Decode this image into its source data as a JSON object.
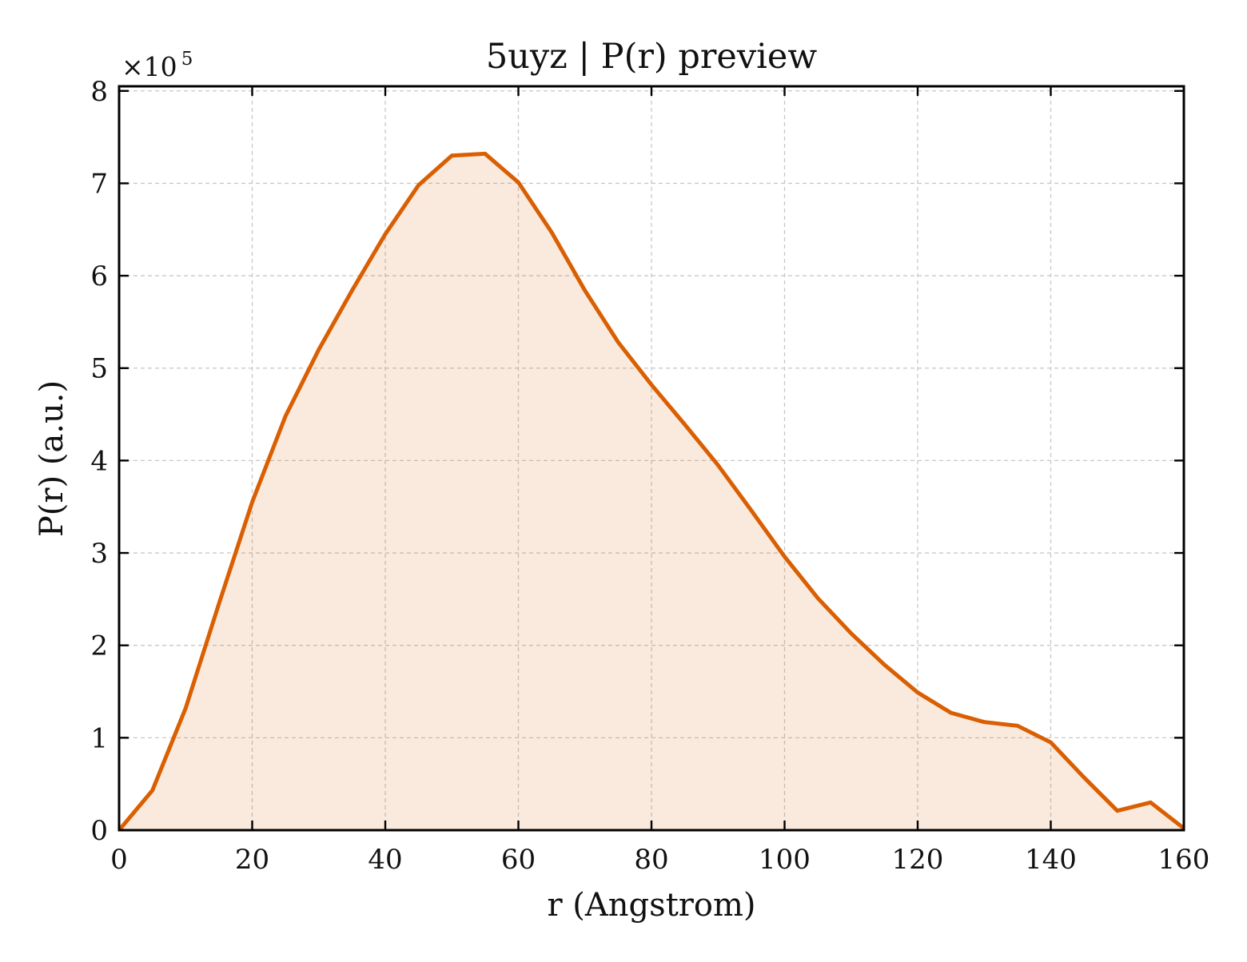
{
  "chart_data": {
    "type": "area",
    "title": "5uyz | P(r) preview",
    "xlabel": "r (Angstrom)",
    "ylabel": "P(r) (a.u.)",
    "y_multiplier": {
      "base": "×10",
      "exponent": "5"
    },
    "xlim": [
      0,
      160
    ],
    "ylim": [
      0,
      8.05
    ],
    "x_ticks": [
      0,
      20,
      40,
      60,
      80,
      100,
      120,
      140,
      160
    ],
    "y_ticks": [
      0,
      1,
      2,
      3,
      4,
      5,
      6,
      7,
      8
    ],
    "x_tick_labels": [
      "0",
      "20",
      "40",
      "60",
      "80",
      "100",
      "120",
      "140",
      "160"
    ],
    "y_tick_labels": [
      "0",
      "1",
      "2",
      "3",
      "4",
      "5",
      "6",
      "7",
      "8"
    ],
    "grid": true,
    "legend": "none",
    "series": [
      {
        "x": [
          0,
          5,
          10,
          15,
          20,
          25,
          30,
          35,
          40,
          45,
          50,
          55,
          60,
          65,
          70,
          75,
          80,
          85,
          90,
          95,
          100,
          105,
          110,
          115,
          120,
          125,
          130,
          135,
          140,
          145,
          150,
          155,
          160
        ],
        "y": [
          0,
          0.43,
          1.32,
          2.45,
          3.55,
          4.48,
          5.2,
          5.84,
          6.45,
          6.98,
          7.3,
          7.32,
          7.01,
          6.47,
          5.84,
          5.28,
          4.82,
          4.39,
          3.95,
          3.46,
          2.96,
          2.51,
          2.13,
          1.79,
          1.49,
          1.27,
          1.17,
          1.13,
          0.95,
          0.57,
          0.21,
          0.3,
          0.02
        ],
        "color": "#d95f02",
        "fill_color": "#d95f02",
        "fill_opacity": 0.13
      }
    ]
  }
}
